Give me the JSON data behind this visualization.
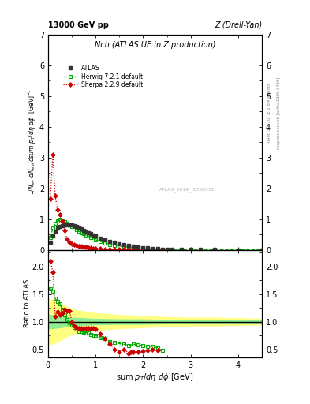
{
  "title_top": "Nch (ATLAS UE in Z production)",
  "header_left": "13000 GeV pp",
  "header_right": "Z (Drell-Yan)",
  "xlabel": "sum p_{T}/d\\eta d\\phi [GeV]",
  "ylabel_main": "1/N_{ev} dN_{ev}/dsum p_{T}/d\\eta d\\phi  [GeV]^{-1}",
  "ylabel_ratio": "Ratio to ATLAS",
  "right_label_top": "Rivet 3.1.10, ≥ 2.8M events",
  "right_label_bottom": "mcplots.cern.ch [arXiv:1306.3436]",
  "watermark": "ATLAS_2019_I1736531",
  "xlim": [
    0,
    4.5
  ],
  "ylim_main": [
    0,
    7
  ],
  "ylim_ratio": [
    0.35,
    2.3
  ],
  "atlas_x": [
    0.05,
    0.1,
    0.15,
    0.2,
    0.25,
    0.3,
    0.35,
    0.4,
    0.45,
    0.5,
    0.55,
    0.6,
    0.65,
    0.7,
    0.75,
    0.8,
    0.85,
    0.9,
    0.95,
    1.0,
    1.1,
    1.2,
    1.3,
    1.4,
    1.5,
    1.6,
    1.7,
    1.8,
    1.9,
    2.0,
    2.1,
    2.2,
    2.3,
    2.4,
    2.5,
    2.6,
    2.8,
    3.0,
    3.2,
    3.5,
    4.0,
    4.5
  ],
  "atlas_y": [
    0.25,
    0.45,
    0.6,
    0.7,
    0.75,
    0.78,
    0.8,
    0.82,
    0.82,
    0.8,
    0.78,
    0.75,
    0.72,
    0.68,
    0.64,
    0.6,
    0.56,
    0.52,
    0.48,
    0.44,
    0.38,
    0.32,
    0.28,
    0.24,
    0.2,
    0.17,
    0.14,
    0.11,
    0.09,
    0.07,
    0.055,
    0.04,
    0.03,
    0.025,
    0.02,
    0.015,
    0.01,
    0.008,
    0.005,
    0.003,
    0.002,
    0.001
  ],
  "herwig_x": [
    0.05,
    0.1,
    0.15,
    0.2,
    0.25,
    0.3,
    0.35,
    0.4,
    0.45,
    0.5,
    0.55,
    0.6,
    0.65,
    0.7,
    0.75,
    0.8,
    0.85,
    0.9,
    0.95,
    1.0,
    1.1,
    1.2,
    1.3,
    1.4,
    1.5,
    1.6,
    1.7,
    1.8,
    1.9,
    2.0,
    2.1,
    2.2,
    2.3,
    2.4,
    2.5,
    2.6,
    2.8,
    3.0,
    3.2,
    3.5,
    4.0,
    4.5
  ],
  "herwig_y": [
    0.4,
    0.7,
    0.85,
    0.95,
    1.0,
    0.95,
    0.9,
    0.85,
    0.8,
    0.75,
    0.7,
    0.65,
    0.6,
    0.56,
    0.52,
    0.48,
    0.44,
    0.4,
    0.36,
    0.33,
    0.27,
    0.22,
    0.18,
    0.15,
    0.12,
    0.1,
    0.08,
    0.065,
    0.052,
    0.04,
    0.03,
    0.022,
    0.016,
    0.012,
    0.009,
    0.007,
    0.004,
    0.003,
    0.002,
    0.0015,
    0.001,
    0.0008
  ],
  "sherpa_x": [
    0.05,
    0.1,
    0.15,
    0.2,
    0.25,
    0.3,
    0.35,
    0.4,
    0.45,
    0.5,
    0.55,
    0.6,
    0.65,
    0.7,
    0.75,
    0.8,
    0.85,
    0.9,
    0.95,
    1.0,
    1.1,
    1.2,
    1.3,
    1.4,
    1.5,
    1.6,
    1.7,
    1.8,
    1.9,
    2.0,
    2.1,
    2.2,
    2.3,
    2.4,
    2.5
  ],
  "sherpa_y": [
    1.65,
    3.1,
    1.75,
    1.3,
    1.15,
    0.95,
    0.62,
    0.35,
    0.25,
    0.2,
    0.17,
    0.15,
    0.13,
    0.11,
    0.09,
    0.08,
    0.07,
    0.06,
    0.05,
    0.04,
    0.03,
    0.022,
    0.016,
    0.012,
    0.008,
    0.006,
    0.004,
    0.003,
    0.002,
    0.0015,
    0.001,
    0.0008,
    0.0006,
    0.0004,
    0.0003
  ],
  "herwig_ratio_x": [
    0.05,
    0.1,
    0.15,
    0.2,
    0.25,
    0.3,
    0.35,
    0.4,
    0.45,
    0.5,
    0.55,
    0.6,
    0.65,
    0.7,
    0.75,
    0.8,
    0.85,
    0.9,
    0.95,
    1.0,
    1.1,
    1.2,
    1.3,
    1.4,
    1.5,
    1.6,
    1.7,
    1.8,
    1.9,
    2.0,
    2.1,
    2.2,
    2.3,
    2.4
  ],
  "herwig_ratio_y": [
    1.6,
    1.55,
    1.42,
    1.36,
    1.33,
    1.22,
    1.13,
    1.04,
    0.98,
    0.94,
    0.9,
    0.87,
    0.83,
    0.82,
    0.81,
    0.8,
    0.79,
    0.77,
    0.75,
    0.75,
    0.71,
    0.69,
    0.64,
    0.63,
    0.6,
    0.59,
    0.57,
    0.59,
    0.58,
    0.57,
    0.55,
    0.55,
    0.53,
    0.48
  ],
  "sherpa_ratio_x": [
    0.05,
    0.1,
    0.15,
    0.2,
    0.25,
    0.3,
    0.35,
    0.4,
    0.45,
    0.5,
    0.55,
    0.6,
    0.65,
    0.7,
    0.75,
    0.8,
    0.85,
    0.9,
    0.95,
    1.0,
    1.1,
    1.2,
    1.3,
    1.4,
    1.5,
    1.6,
    1.7,
    1.75,
    1.8,
    1.9,
    2.0,
    2.1,
    2.2,
    2.3
  ],
  "sherpa_ratio_y": [
    2.1,
    1.9,
    1.1,
    1.18,
    1.12,
    1.15,
    1.22,
    1.2,
    1.2,
    1.0,
    0.93,
    0.9,
    0.88,
    0.88,
    0.88,
    0.88,
    0.88,
    0.88,
    0.88,
    0.86,
    0.78,
    0.7,
    0.6,
    0.5,
    0.45,
    0.5,
    0.43,
    0.45,
    0.45,
    0.45,
    0.46,
    0.48,
    0.5,
    0.48
  ],
  "green_band_x": [
    0.0,
    0.1,
    0.5,
    1.0,
    1.5,
    2.0,
    2.5,
    3.0,
    3.5,
    4.0,
    4.5
  ],
  "green_band_lo": [
    0.88,
    0.88,
    0.93,
    0.95,
    0.96,
    0.96,
    0.97,
    0.97,
    0.97,
    0.97,
    0.97
  ],
  "green_band_hi": [
    1.12,
    1.12,
    1.07,
    1.05,
    1.04,
    1.04,
    1.03,
    1.03,
    1.03,
    1.03,
    1.03
  ],
  "yellow_band_x": [
    0.0,
    0.1,
    0.5,
    1.0,
    1.5,
    2.0,
    2.5,
    3.0,
    3.5,
    4.0,
    4.5
  ],
  "yellow_band_lo": [
    0.6,
    0.6,
    0.78,
    0.85,
    0.88,
    0.9,
    0.92,
    0.93,
    0.93,
    0.94,
    0.95
  ],
  "yellow_band_hi": [
    1.4,
    1.4,
    1.22,
    1.15,
    1.12,
    1.1,
    1.08,
    1.07,
    1.07,
    1.06,
    1.05
  ],
  "atlas_color": "#333333",
  "herwig_color": "#00aa00",
  "sherpa_color": "#cc0000",
  "green_band_color": "#90ee90",
  "yellow_band_color": "#ffff80",
  "background_color": "#ffffff",
  "yticks_main": [
    0,
    1,
    2,
    3,
    4,
    5,
    6,
    7
  ],
  "yticks_ratio": [
    0.5,
    1.0,
    1.5,
    2.0
  ],
  "xticks": [
    0,
    1,
    2,
    3,
    4
  ]
}
